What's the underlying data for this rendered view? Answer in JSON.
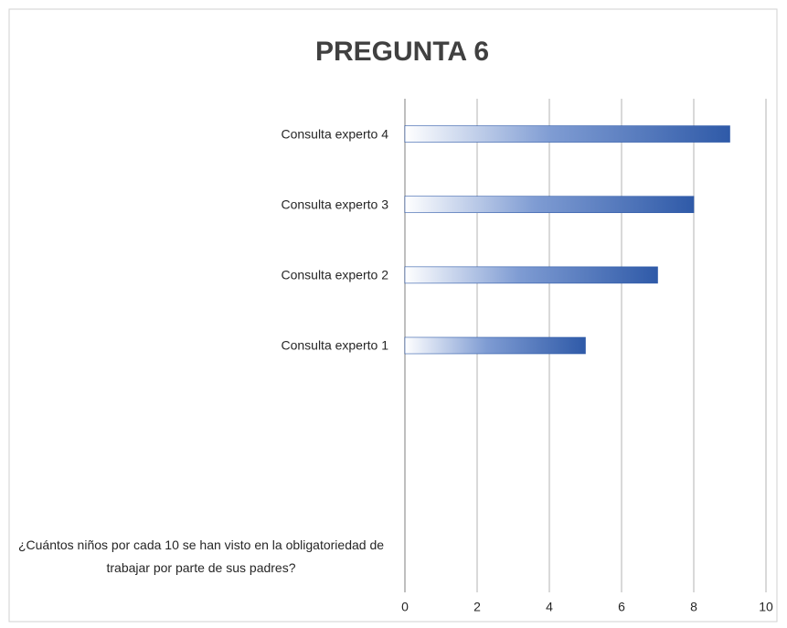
{
  "chart_data": {
    "type": "barh",
    "title": "PREGUNTA 6",
    "categories": [
      "¿Cuántos niños por cada 10 se han visto en la obligatoriedad de trabajar por parte de sus padres?",
      null,
      null,
      "Consulta experto 1",
      "Consulta experto 2",
      "Consulta experto 3",
      "Consulta experto 4"
    ],
    "values": [
      null,
      null,
      null,
      5,
      7,
      8,
      9
    ],
    "color": "#2f5aa8",
    "xlim": [
      0,
      10
    ],
    "xticks": [
      0,
      2,
      4,
      6,
      8,
      10
    ],
    "grid": true
  }
}
